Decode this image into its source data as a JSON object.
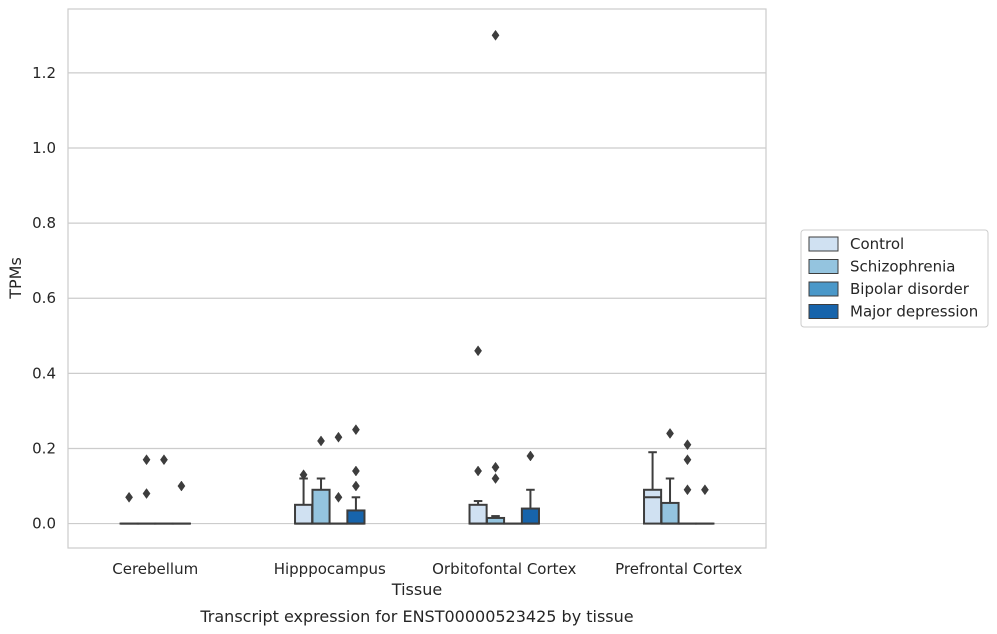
{
  "chart_data": {
    "type": "box",
    "title": "",
    "xlabel": "Tissue",
    "ylabel": "TPMs",
    "caption": "Transcript expression for ENST00000523425 by tissue",
    "categories": [
      "Cerebellum",
      "Hipppocampus",
      "Orbitofontal Cortex",
      "Prefrontal Cortex"
    ],
    "y_ticks": [
      "0.0",
      "0.2",
      "0.4",
      "0.6",
      "0.8",
      "1.0",
      "1.2"
    ],
    "ylim": [
      -0.065,
      1.37
    ],
    "grid": "horizontal",
    "legend_position": "right",
    "series": [
      {
        "name": "Control",
        "color": "#d0e1f2",
        "boxes": [
          {
            "category": "Cerebellum",
            "q1": 0,
            "median": 0,
            "q3": 0,
            "whisker_low": 0,
            "whisker_high": 0,
            "outliers": [
              0.07
            ]
          },
          {
            "category": "Hipppocampus",
            "q1": 0,
            "median": 0,
            "q3": 0.05,
            "whisker_low": 0,
            "whisker_high": 0.12,
            "outliers": [
              0.13
            ]
          },
          {
            "category": "Orbitofontal Cortex",
            "q1": 0,
            "median": 0,
            "q3": 0.05,
            "whisker_low": 0,
            "whisker_high": 0.06,
            "outliers": [
              0.14,
              0.46
            ]
          },
          {
            "category": "Prefrontal Cortex",
            "q1": 0,
            "median": 0.07,
            "q3": 0.09,
            "whisker_low": 0,
            "whisker_high": 0.19,
            "outliers": []
          }
        ]
      },
      {
        "name": "Schizophrenia",
        "color": "#94c4df",
        "boxes": [
          {
            "category": "Cerebellum",
            "q1": 0,
            "median": 0,
            "q3": 0,
            "whisker_low": 0,
            "whisker_high": 0,
            "outliers": [
              0.08,
              0.17
            ]
          },
          {
            "category": "Hipppocampus",
            "q1": 0,
            "median": 0,
            "q3": 0.09,
            "whisker_low": 0,
            "whisker_high": 0.12,
            "outliers": [
              0.22
            ]
          },
          {
            "category": "Orbitofontal Cortex",
            "q1": 0,
            "median": 0,
            "q3": 0.015,
            "whisker_low": 0,
            "whisker_high": 0.02,
            "outliers": [
              0.12,
              0.15,
              1.3
            ]
          },
          {
            "category": "Prefrontal Cortex",
            "q1": 0,
            "median": 0,
            "q3": 0.055,
            "whisker_low": 0,
            "whisker_high": 0.12,
            "outliers": [
              0.24
            ]
          }
        ]
      },
      {
        "name": "Bipolar disorder",
        "color": "#4a98c9",
        "boxes": [
          {
            "category": "Cerebellum",
            "q1": 0,
            "median": 0,
            "q3": 0,
            "whisker_low": 0,
            "whisker_high": 0,
            "outliers": [
              0.17
            ]
          },
          {
            "category": "Hipppocampus",
            "q1": 0,
            "median": 0,
            "q3": 0,
            "whisker_low": 0,
            "whisker_high": 0,
            "outliers": [
              0.07,
              0.23
            ]
          },
          {
            "category": "Orbitofontal Cortex",
            "q1": 0,
            "median": 0,
            "q3": 0,
            "whisker_low": 0,
            "whisker_high": 0,
            "outliers": []
          },
          {
            "category": "Prefrontal Cortex",
            "q1": 0,
            "median": 0,
            "q3": 0,
            "whisker_low": 0,
            "whisker_high": 0,
            "outliers": [
              0.09,
              0.17,
              0.21
            ]
          }
        ]
      },
      {
        "name": "Major depression",
        "color": "#1764ab",
        "boxes": [
          {
            "category": "Cerebellum",
            "q1": 0,
            "median": 0,
            "q3": 0,
            "whisker_low": 0,
            "whisker_high": 0,
            "outliers": [
              0.1
            ]
          },
          {
            "category": "Hipppocampus",
            "q1": 0,
            "median": 0,
            "q3": 0.035,
            "whisker_low": 0,
            "whisker_high": 0.07,
            "outliers": [
              0.1,
              0.14,
              0.25
            ]
          },
          {
            "category": "Orbitofontal Cortex",
            "q1": 0,
            "median": 0,
            "q3": 0.04,
            "whisker_low": 0,
            "whisker_high": 0.09,
            "outliers": [
              0.18
            ]
          },
          {
            "category": "Prefrontal Cortex",
            "q1": 0,
            "median": 0,
            "q3": 0,
            "whisker_low": 0,
            "whisker_high": 0,
            "outliers": [
              0.09
            ]
          }
        ]
      }
    ]
  },
  "colors": {
    "grid": "#cccccc",
    "frame": "#cccccc",
    "box_edge": "#3d3d3d",
    "legend_border": "#cccccc"
  }
}
